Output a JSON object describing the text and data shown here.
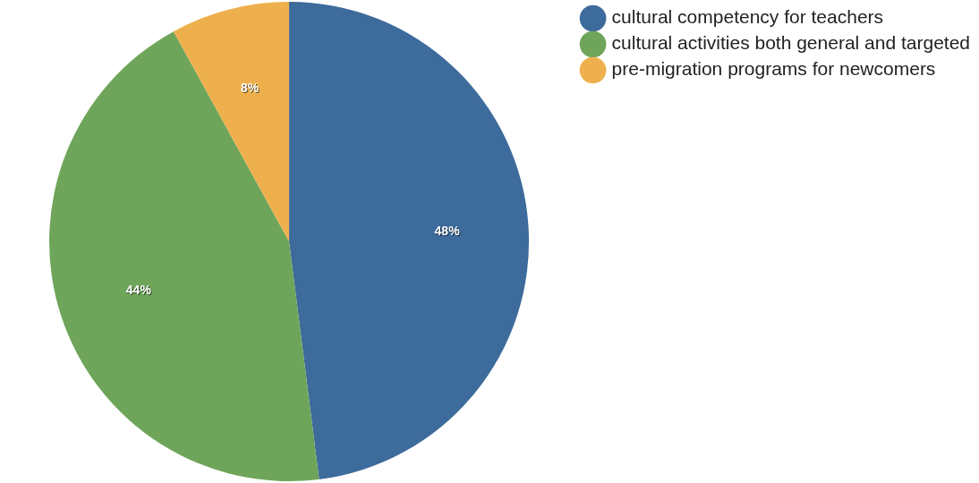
{
  "chart_data": {
    "type": "pie",
    "categories": [
      "cultural competency for teachers",
      "cultural activities both general and targeted",
      "pre-migration programs for newcomers"
    ],
    "values": [
      48,
      44,
      8
    ],
    "colors": [
      "#3d6b9b",
      "#6ea55a",
      "#eeb04d"
    ],
    "value_labels": [
      "48%",
      "44%",
      "8%"
    ],
    "legend": "top right"
  }
}
